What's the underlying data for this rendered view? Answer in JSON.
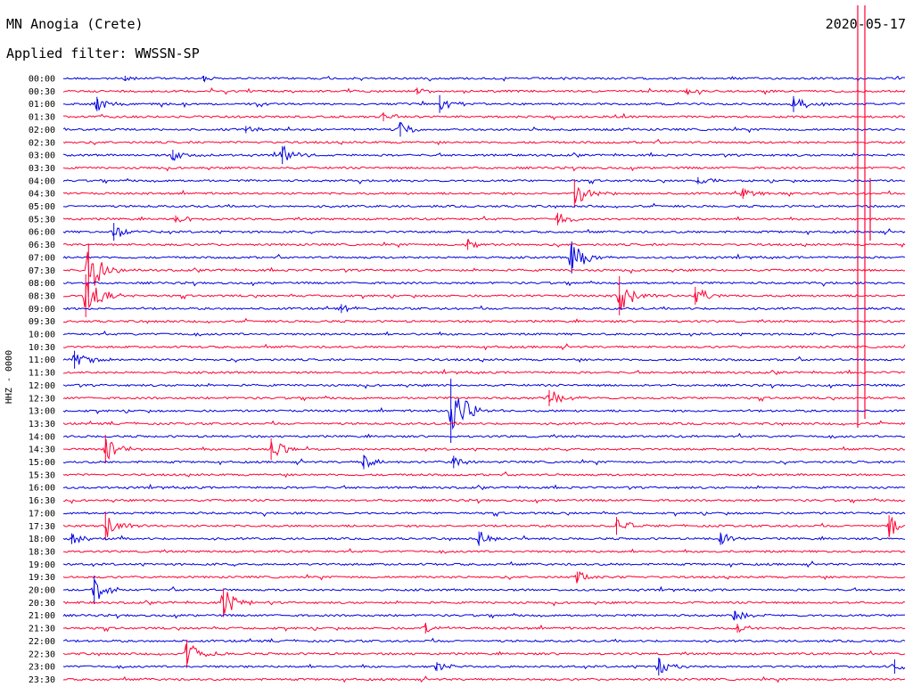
{
  "header": {
    "station": "MN Anogia (Crete)",
    "date": "2020-05-17",
    "filter": "Applied filter: WWSSN-SP",
    "channel": "HHZ - 0000"
  },
  "chart_data": {
    "type": "line",
    "title": "MN Anogia (Crete)",
    "ylabel": "HHZ - 0000",
    "rows": [
      "00:00",
      "00:30",
      "01:00",
      "01:30",
      "02:00",
      "02:30",
      "03:00",
      "03:30",
      "04:00",
      "04:30",
      "05:00",
      "05:30",
      "06:00",
      "06:30",
      "07:00",
      "07:30",
      "08:00",
      "08:30",
      "09:00",
      "09:30",
      "10:00",
      "10:30",
      "11:00",
      "11:30",
      "12:00",
      "12:30",
      "13:00",
      "13:30",
      "14:00",
      "14:30",
      "15:00",
      "15:30",
      "16:00",
      "16:30",
      "17:00",
      "17:30",
      "18:00",
      "18:30",
      "19:00",
      "19:30",
      "20:00",
      "20:30",
      "21:00",
      "21:30",
      "22:00",
      "22:30",
      "23:00",
      "23:30"
    ],
    "series_colors": [
      "#0000e0",
      "#ff0033"
    ],
    "x_range_minutes": [
      0,
      30
    ],
    "events": [
      {
        "row": 0,
        "minute": 2.2,
        "amp": 3
      },
      {
        "row": 0,
        "minute": 5.0,
        "amp": 3
      },
      {
        "row": 1,
        "minute": 12.6,
        "amp": 4
      },
      {
        "row": 1,
        "minute": 22.2,
        "amp": 3
      },
      {
        "row": 2,
        "minute": 1.2,
        "amp": 8
      },
      {
        "row": 2,
        "minute": 13.4,
        "amp": 10
      },
      {
        "row": 2,
        "minute": 26.0,
        "amp": 9
      },
      {
        "row": 3,
        "minute": 11.4,
        "amp": 5
      },
      {
        "row": 4,
        "minute": 12.0,
        "amp": 8
      },
      {
        "row": 4,
        "minute": 6.5,
        "amp": 4
      },
      {
        "row": 6,
        "minute": 7.8,
        "amp": 10
      },
      {
        "row": 6,
        "minute": 3.9,
        "amp": 6
      },
      {
        "row": 9,
        "minute": 18.2,
        "amp": 16
      },
      {
        "row": 9,
        "minute": 24.2,
        "amp": 6
      },
      {
        "row": 8,
        "minute": 22.6,
        "amp": 4
      },
      {
        "row": 11,
        "minute": 17.6,
        "amp": 7
      },
      {
        "row": 11,
        "minute": 4.0,
        "amp": 4
      },
      {
        "row": 12,
        "minute": 1.8,
        "amp": 10
      },
      {
        "row": 13,
        "minute": 14.4,
        "amp": 6
      },
      {
        "row": 14,
        "minute": 18.1,
        "amp": 18
      },
      {
        "row": 15,
        "minute": 0.9,
        "amp": 30
      },
      {
        "row": 17,
        "minute": 0.8,
        "amp": 24
      },
      {
        "row": 17,
        "minute": 19.8,
        "amp": 22
      },
      {
        "row": 17,
        "minute": 22.5,
        "amp": 10
      },
      {
        "row": 18,
        "minute": 9.9,
        "amp": 5
      },
      {
        "row": 22,
        "minute": 0.4,
        "amp": 10
      },
      {
        "row": 25,
        "minute": 17.3,
        "amp": 9
      },
      {
        "row": 26,
        "minute": 13.8,
        "amp": 36
      },
      {
        "row": 29,
        "minute": 1.5,
        "amp": 16
      },
      {
        "row": 29,
        "minute": 7.4,
        "amp": 12
      },
      {
        "row": 30,
        "minute": 13.9,
        "amp": 7
      },
      {
        "row": 30,
        "minute": 10.7,
        "amp": 8
      },
      {
        "row": 35,
        "minute": 1.5,
        "amp": 16
      },
      {
        "row": 35,
        "minute": 19.7,
        "amp": 10
      },
      {
        "row": 35,
        "minute": 29.4,
        "amp": 12
      },
      {
        "row": 36,
        "minute": 14.8,
        "amp": 8
      },
      {
        "row": 36,
        "minute": 23.4,
        "amp": 7
      },
      {
        "row": 36,
        "minute": 0.3,
        "amp": 6
      },
      {
        "row": 39,
        "minute": 18.3,
        "amp": 6
      },
      {
        "row": 40,
        "minute": 1.1,
        "amp": 16
      },
      {
        "row": 41,
        "minute": 5.7,
        "amp": 16
      },
      {
        "row": 42,
        "minute": 23.9,
        "amp": 5
      },
      {
        "row": 43,
        "minute": 24.0,
        "amp": 5
      },
      {
        "row": 43,
        "minute": 12.9,
        "amp": 6
      },
      {
        "row": 45,
        "minute": 4.4,
        "amp": 16
      },
      {
        "row": 46,
        "minute": 13.3,
        "amp": 5
      },
      {
        "row": 46,
        "minute": 21.2,
        "amp": 10
      },
      {
        "row": 46,
        "minute": 29.6,
        "amp": 8
      }
    ]
  }
}
